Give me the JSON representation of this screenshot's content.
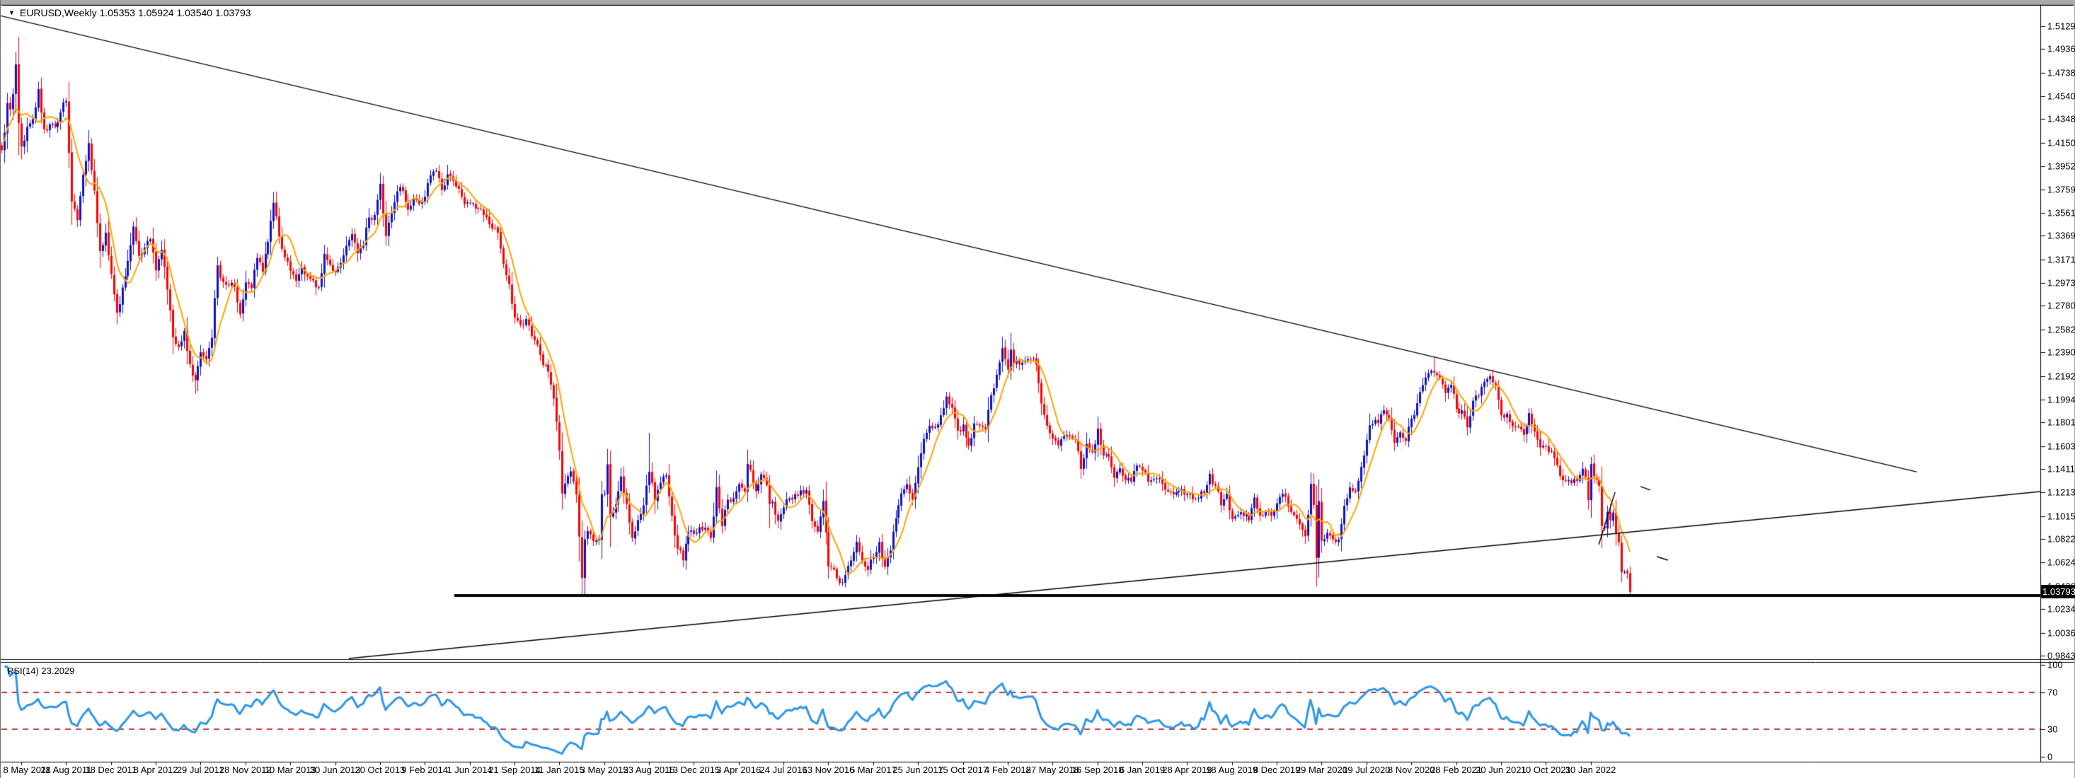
{
  "window": {
    "marker": "▼",
    "title_symbol": "EURUSD,Weekly",
    "title_ohlc": "1.05353 1.05924 1.03540 1.03793"
  },
  "colors": {
    "background": "#FFFFFF",
    "frame": "#000000",
    "bull_candle": "#1111CC",
    "bear_candle": "#FF0000",
    "ma_line": "#FFA500",
    "rsi_line": "#2E96E9",
    "rsi_level_line": "#CC3333",
    "trendline": "#000000",
    "support_line": "#000000",
    "axis_text": "#000000",
    "badge_bg": "#000000",
    "badge_text": "#FFFFFF"
  },
  "price_axis": {
    "current_badge": "1.03793",
    "ticks": [
      "1.51290",
      "1.49365",
      "1.47385",
      "1.45405",
      "1.43480",
      "1.41500",
      "1.39520",
      "1.37595",
      "1.35615",
      "1.33690",
      "1.31710",
      "1.29730",
      "1.27805",
      "1.25825",
      "1.23900",
      "1.21920",
      "1.19940",
      "1.18015",
      "1.16035",
      "1.14110",
      "1.12130",
      "1.10150",
      "1.08225",
      "1.06245",
      "1.04265",
      "1.02340",
      "1.00360",
      "0.98435"
    ]
  },
  "time_axis": {
    "labels": [
      "8 May 2011",
      "28 Aug 2011",
      "18 Dec 2011",
      "8 Apr 2012",
      "29 Jul 2012",
      "18 Nov 2012",
      "10 Mar 2013",
      "30 Jun 2013",
      "20 Oct 2013",
      "9 Feb 2014",
      "1 Jun 2014",
      "21 Sep 2014",
      "11 Jan 2015",
      "3 May 2015",
      "23 Aug 2015",
      "13 Dec 2015",
      "3 Apr 2016",
      "24 Jul 2016",
      "13 Nov 2016",
      "5 Mar 2017",
      "25 Jun 2017",
      "15 Oct 2017",
      "4 Feb 2018",
      "27 May 2018",
      "16 Sep 2018",
      "6 Jan 2019",
      "28 Apr 2019",
      "18 Aug 2019",
      "8 Dec 2019",
      "29 Mar 2020",
      "19 Jul 2020",
      "8 Nov 2020",
      "28 Feb 2021",
      "20 Jun 2021",
      "10 Oct 2021",
      "30 Jan 2022"
    ]
  },
  "rsi_panel": {
    "label": "RSI(14) 23.2029",
    "scale_labels": [
      "100",
      "70",
      "30",
      "0"
    ],
    "scale_values": [
      100,
      70,
      30,
      0
    ],
    "level_lines": [
      70,
      30
    ],
    "period": 14,
    "current_value": 23.2029
  },
  "chart_data": {
    "type": "candlestick",
    "symbol": "EURUSD",
    "timeframe": "Weekly",
    "title": "EURUSD,Weekly",
    "current_bar": {
      "open": 1.05353,
      "high": 1.05924,
      "low": 1.0354,
      "close": 1.03793
    },
    "x_axis": {
      "labels_every_weeks": 16,
      "first_label": "8 May 2011",
      "last_label": "30 Jan 2022"
    },
    "y_axis": {
      "visible_range": [
        0.9772,
        1.5424
      ],
      "grid": false
    },
    "pre_label_closes": [
      1.4088,
      1.4235,
      1.4483,
      1.4429,
      1.4559,
      1.4807,
      1.4316
    ],
    "close_anchors": [
      [
        0,
        1.4119
      ],
      [
        2,
        1.4283
      ],
      [
        4,
        1.4349
      ],
      [
        6,
        1.46
      ],
      [
        8,
        1.4264
      ],
      [
        10,
        1.4305
      ],
      [
        12,
        1.4283
      ],
      [
        14,
        1.4406
      ],
      [
        16,
        1.45
      ],
      [
        18,
        1.3656
      ],
      [
        20,
        1.35
      ],
      [
        22,
        1.388
      ],
      [
        24,
        1.4147
      ],
      [
        26,
        1.3748
      ],
      [
        28,
        1.3239
      ],
      [
        30,
        1.3394
      ],
      [
        32,
        1.3046
      ],
      [
        34,
        1.2722
      ],
      [
        36,
        1.2934
      ],
      [
        38,
        1.3158
      ],
      [
        40,
        1.3446
      ],
      [
        42,
        1.32
      ],
      [
        44,
        1.3269
      ],
      [
        46,
        1.334
      ],
      [
        48,
        1.3078
      ],
      [
        50,
        1.325
      ],
      [
        52,
        1.2917
      ],
      [
        54,
        1.2517
      ],
      [
        56,
        1.2435
      ],
      [
        58,
        1.257
      ],
      [
        60,
        1.2291
      ],
      [
        62,
        1.2158
      ],
      [
        64,
        1.239
      ],
      [
        66,
        1.2332
      ],
      [
        68,
        1.2512
      ],
      [
        70,
        1.3119
      ],
      [
        72,
        1.2981
      ],
      [
        74,
        1.2952
      ],
      [
        76,
        1.2941
      ],
      [
        78,
        1.2711
      ],
      [
        80,
        1.2977
      ],
      [
        82,
        1.293
      ],
      [
        84,
        1.3184
      ],
      [
        86,
        1.3068
      ],
      [
        88,
        1.3318
      ],
      [
        90,
        1.3645
      ],
      [
        92,
        1.3364
      ],
      [
        94,
        1.3188
      ],
      [
        96,
        1.3074
      ],
      [
        98,
        1.299
      ],
      [
        100,
        1.3104
      ],
      [
        102,
        1.3029
      ],
      [
        104,
        1.2994
      ],
      [
        106,
        1.2936
      ],
      [
        108,
        1.3217
      ],
      [
        110,
        1.3124
      ],
      [
        112,
        1.3062
      ],
      [
        114,
        1.314
      ],
      [
        116,
        1.3285
      ],
      [
        118,
        1.3383
      ],
      [
        120,
        1.3222
      ],
      [
        122,
        1.3296
      ],
      [
        124,
        1.3522
      ],
      [
        126,
        1.3543
      ],
      [
        128,
        1.3805
      ],
      [
        130,
        1.3367
      ],
      [
        132,
        1.3557
      ],
      [
        134,
        1.3741
      ],
      [
        136,
        1.3744
      ],
      [
        138,
        1.3587
      ],
      [
        140,
        1.3679
      ],
      [
        142,
        1.3635
      ],
      [
        144,
        1.3697
      ],
      [
        146,
        1.3876
      ],
      [
        148,
        1.3914
      ],
      [
        150,
        1.3753
      ],
      [
        152,
        1.3885
      ],
      [
        154,
        1.383
      ],
      [
        156,
        1.3763
      ],
      [
        158,
        1.3634
      ],
      [
        160,
        1.3643
      ],
      [
        162,
        1.3597
      ],
      [
        164,
        1.3595
      ],
      [
        166,
        1.3524
      ],
      [
        168,
        1.343
      ],
      [
        170,
        1.3395
      ],
      [
        172,
        1.3132
      ],
      [
        174,
        1.2963
      ],
      [
        176,
        1.2683
      ],
      [
        178,
        1.2623
      ],
      [
        180,
        1.267
      ],
      [
        182,
        1.2526
      ],
      [
        184,
        1.2454
      ],
      [
        186,
        1.2283
      ],
      [
        188,
        1.2228
      ],
      [
        190,
        1.2003
      ],
      [
        192,
        1.1566
      ],
      [
        193,
        1.1205
      ],
      [
        194,
        1.1288
      ],
      [
        196,
        1.139
      ],
      [
        198,
        1.1197
      ],
      [
        199,
        1.0843
      ],
      [
        200,
        1.0496
      ],
      [
        201,
        1.082
      ],
      [
        202,
        1.089
      ],
      [
        204,
        1.0805
      ],
      [
        206,
        1.082
      ],
      [
        207,
        1.1198
      ],
      [
        208,
        1.1203
      ],
      [
        209,
        1.1449
      ],
      [
        210,
        1.1011
      ],
      [
        212,
        1.1115
      ],
      [
        214,
        1.1348
      ],
      [
        216,
        1.1116
      ],
      [
        218,
        1.0832
      ],
      [
        220,
        1.0982
      ],
      [
        222,
        1.1106
      ],
      [
        224,
        1.1387
      ],
      [
        226,
        1.1146
      ],
      [
        228,
        1.1296
      ],
      [
        230,
        1.1357
      ],
      [
        232,
        1.1018
      ],
      [
        234,
        1.0742
      ],
      [
        236,
        1.0644
      ],
      [
        238,
        1.088
      ],
      [
        240,
        1.0866
      ],
      [
        242,
        1.0921
      ],
      [
        244,
        1.0917
      ],
      [
        246,
        1.0832
      ],
      [
        248,
        1.1257
      ],
      [
        250,
        1.0932
      ],
      [
        252,
        1.1152
      ],
      [
        254,
        1.1166
      ],
      [
        256,
        1.1283
      ],
      [
        258,
        1.1223
      ],
      [
        259,
        1.1452
      ],
      [
        260,
        1.1403
      ],
      [
        262,
        1.1224
      ],
      [
        264,
        1.1366
      ],
      [
        266,
        1.1276
      ],
      [
        267,
        1.1117
      ],
      [
        268,
        1.1136
      ],
      [
        270,
        1.0976
      ],
      [
        272,
        1.1087
      ],
      [
        274,
        1.1163
      ],
      [
        276,
        1.1198
      ],
      [
        278,
        1.1231
      ],
      [
        280,
        1.1234
      ],
      [
        282,
        1.0972
      ],
      [
        284,
        1.0886
      ],
      [
        286,
        1.1141
      ],
      [
        288,
        1.0591
      ],
      [
        290,
        1.0566
      ],
      [
        292,
        1.0453
      ],
      [
        294,
        1.052
      ],
      [
        296,
        1.0643
      ],
      [
        298,
        1.0798
      ],
      [
        300,
        1.0641
      ],
      [
        302,
        1.0562
      ],
      [
        304,
        1.0673
      ],
      [
        306,
        1.0798
      ],
      [
        308,
        1.059
      ],
      [
        310,
        1.0726
      ],
      [
        312,
        1.0998
      ],
      [
        314,
        1.1206
      ],
      [
        316,
        1.1283
      ],
      [
        318,
        1.1152
      ],
      [
        320,
        1.1425
      ],
      [
        322,
        1.1664
      ],
      [
        324,
        1.1773
      ],
      [
        326,
        1.1762
      ],
      [
        328,
        1.1862
      ],
      [
        330,
        1.2018
      ],
      [
        332,
        1.1925
      ],
      [
        334,
        1.1733
      ],
      [
        336,
        1.1784
      ],
      [
        338,
        1.1608
      ],
      [
        340,
        1.1793
      ],
      [
        342,
        1.1775
      ],
      [
        344,
        1.1749
      ],
      [
        346,
        1.2029
      ],
      [
        348,
        1.2202
      ],
      [
        350,
        1.2426
      ],
      [
        352,
        1.2246
      ],
      [
        353,
        1.2412
      ],
      [
        354,
        1.2295
      ],
      [
        356,
        1.2288
      ],
      [
        358,
        1.232
      ],
      [
        360,
        1.2332
      ],
      [
        362,
        1.2287
      ],
      [
        364,
        1.196
      ],
      [
        366,
        1.1774
      ],
      [
        368,
        1.1668
      ],
      [
        370,
        1.1609
      ],
      [
        372,
        1.1685
      ],
      [
        374,
        1.1687
      ],
      [
        376,
        1.1657
      ],
      [
        378,
        1.1412
      ],
      [
        380,
        1.1622
      ],
      [
        382,
        1.1552
      ],
      [
        384,
        1.175
      ],
      [
        386,
        1.1523
      ],
      [
        388,
        1.1513
      ],
      [
        390,
        1.1338
      ],
      [
        392,
        1.1417
      ],
      [
        394,
        1.1318
      ],
      [
        396,
        1.1306
      ],
      [
        398,
        1.1439
      ],
      [
        400,
        1.1398
      ],
      [
        402,
        1.1304
      ],
      [
        404,
        1.1325
      ],
      [
        406,
        1.1335
      ],
      [
        408,
        1.1237
      ],
      [
        410,
        1.1217
      ],
      [
        412,
        1.1218
      ],
      [
        414,
        1.1245
      ],
      [
        416,
        1.1199
      ],
      [
        418,
        1.1158
      ],
      [
        420,
        1.1169
      ],
      [
        422,
        1.1208
      ],
      [
        424,
        1.137
      ],
      [
        426,
        1.127
      ],
      [
        428,
        1.1108
      ],
      [
        430,
        1.1201
      ],
      [
        432,
        1.099
      ],
      [
        434,
        1.1025
      ],
      [
        436,
        1.1017
      ],
      [
        438,
        1.0979
      ],
      [
        440,
        1.1172
      ],
      [
        442,
        1.1019
      ],
      [
        444,
        1.1052
      ],
      [
        446,
        1.1018
      ],
      [
        448,
        1.1122
      ],
      [
        450,
        1.1201
      ],
      [
        452,
        1.1094
      ],
      [
        454,
        1.1024
      ],
      [
        456,
        1.0945
      ],
      [
        458,
        1.0846
      ],
      [
        459,
        1.1026
      ],
      [
        460,
        1.1285
      ],
      [
        461,
        1.1108
      ],
      [
        462,
        1.0664
      ],
      [
        463,
        1.1141
      ],
      [
        464,
        1.0808
      ],
      [
        466,
        1.0875
      ],
      [
        468,
        1.082
      ],
      [
        470,
        1.0819
      ],
      [
        472,
        1.1101
      ],
      [
        474,
        1.1256
      ],
      [
        476,
        1.1218
      ],
      [
        478,
        1.1428
      ],
      [
        480,
        1.1656
      ],
      [
        481,
        1.1778
      ],
      [
        482,
        1.1787
      ],
      [
        484,
        1.1797
      ],
      [
        486,
        1.1903
      ],
      [
        488,
        1.1838
      ],
      [
        490,
        1.163
      ],
      [
        492,
        1.1718
      ],
      [
        494,
        1.1646
      ],
      [
        496,
        1.1834
      ],
      [
        498,
        1.1963
      ],
      [
        500,
        1.2114
      ],
      [
        502,
        1.2215
      ],
      [
        504,
        1.222
      ],
      [
        506,
        1.2171
      ],
      [
        508,
        1.2048
      ],
      [
        510,
        1.2117
      ],
      [
        512,
        1.1915
      ],
      [
        514,
        1.1903
      ],
      [
        516,
        1.176
      ],
      [
        518,
        1.1984
      ],
      [
        520,
        1.202
      ],
      [
        522,
        1.2143
      ],
      [
        524,
        1.219
      ],
      [
        526,
        1.2108
      ],
      [
        528,
        1.1863
      ],
      [
        530,
        1.1875
      ],
      [
        532,
        1.177
      ],
      [
        534,
        1.1762
      ],
      [
        536,
        1.1697
      ],
      [
        538,
        1.188
      ],
      [
        540,
        1.1725
      ],
      [
        542,
        1.1592
      ],
      [
        544,
        1.1601
      ],
      [
        546,
        1.1562
      ],
      [
        548,
        1.1445
      ],
      [
        550,
        1.1317
      ],
      [
        552,
        1.1317
      ],
      [
        554,
        1.1325
      ],
      [
        556,
        1.136
      ],
      [
        557,
        1.1412
      ],
      [
        558,
        1.1343
      ],
      [
        559,
        1.1148
      ],
      [
        560,
        1.1452
      ],
      [
        561,
        1.135
      ],
      [
        562,
        1.1321
      ],
      [
        563,
        1.127
      ],
      [
        564,
        1.0932
      ],
      [
        565,
        1.0911
      ],
      [
        566,
        1.105
      ],
      [
        567,
        1.0981
      ],
      [
        568,
        1.1045
      ],
      [
        569,
        1.0876
      ],
      [
        570,
        1.0795
      ],
      [
        571,
        1.0545
      ],
      [
        572,
        1.0549
      ],
      [
        573,
        1.0535
      ],
      [
        574,
        1.03793
      ]
    ],
    "special_highs": {
      "-1": 1.494,
      "209": 1.1467,
      "224": 1.1714,
      "353": 1.2555,
      "504": 1.2349,
      "574": 1.05924
    },
    "special_lows": {
      "34": 1.2624,
      "62": 1.2042,
      "193": 1.1114,
      "200": 1.0462,
      "267": 1.0912,
      "462": 1.0636,
      "571": 1.0471,
      "574": 1.0354
    },
    "overlays": {
      "moving_average": {
        "period": 8
      },
      "trendlines": [
        {
          "name": "descending-resistance",
          "points": [
            [
              -7.6,
              1.5217
            ],
            [
              676.3,
              1.1387
            ]
          ],
          "width": 1.4
        },
        {
          "name": "ascending-support",
          "points": [
            [
              116.9,
              0.982
            ],
            [
              720.5,
              1.1221
            ]
          ],
          "width": 1.4
        },
        {
          "name": "breakdown-retest-line",
          "points": [
            [
              562.9,
              1.0776
            ],
            [
              568.7,
              1.1216
            ]
          ],
          "width": 1.4
        },
        {
          "name": "projection-dash-upper",
          "points": [
            [
              577.8,
              1.1264
            ],
            [
              581.3,
              1.1234
            ]
          ],
          "width": 1.4
        },
        {
          "name": "projection-dash-lower",
          "points": [
            [
              583.6,
              1.0675
            ],
            [
              587.6,
              1.0645
            ]
          ],
          "width": 1.4
        }
      ],
      "horizontal_support": {
        "price": 1.0348,
        "from_week": 154.5,
        "to_week": 720.5,
        "width": 4
      }
    },
    "indicator": {
      "name": "RSI",
      "period": 14,
      "current": 23.2029,
      "levels": [
        70,
        30
      ],
      "scale": [
        0,
        100
      ]
    }
  }
}
